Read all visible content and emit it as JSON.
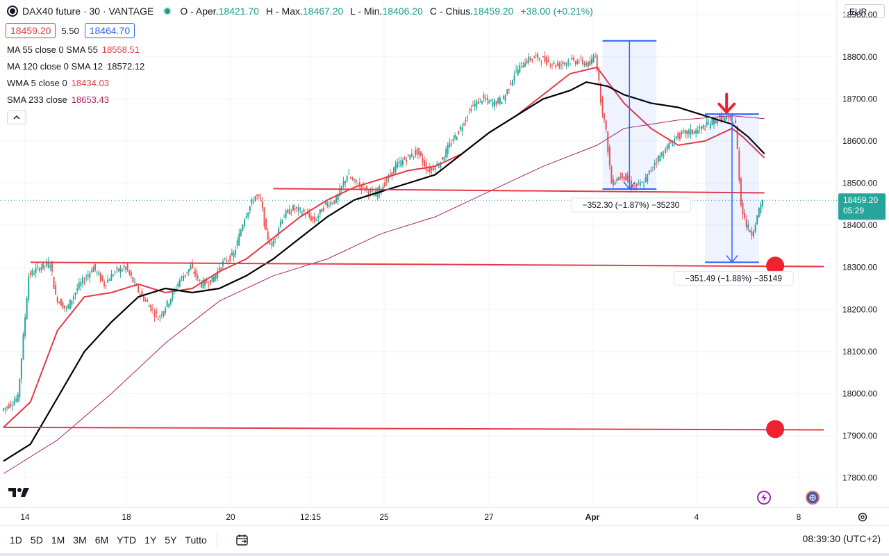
{
  "header": {
    "symbol": "DAX40 future · 30 · VANTAGE",
    "open_label": "O - Aper.",
    "open": "18421.70",
    "high_label": "H - Max.",
    "high": "18467.20",
    "low_label": "L - Min.",
    "low": "18406.20",
    "close_label": "C - Chius.",
    "close": "18459.20",
    "change": "+38.00 (+0.21%)"
  },
  "quote": {
    "bid": "18459.20",
    "spread": "5.50",
    "ask": "18464.70"
  },
  "indicators": [
    {
      "name": "MA 55 close 0 SMA 55",
      "value": "18558.51",
      "color": "#e53945"
    },
    {
      "name": "MA 120 close 0 SMA 12",
      "value": "18572.12",
      "color": "#131722"
    },
    {
      "name": "WMA 5 close 0",
      "value": "18434.03",
      "color": "#e53945"
    },
    {
      "name": "SMA 233 close",
      "value": "18653.43",
      "color": "#b0225e"
    }
  ],
  "currency": "EUR",
  "price_tag": {
    "price": "18459.20",
    "countdown": "05:29"
  },
  "measure_1": "−352.30 (−1.87%) −35230",
  "measure_2": "−351.49 (−1.88%) −35149",
  "bottom": {
    "ranges": [
      "1D",
      "5D",
      "1M",
      "3M",
      "6M",
      "YTD",
      "1Y",
      "5Y",
      "Tutto"
    ],
    "clock": "08:39:30 (UTC+2)"
  },
  "colors": {
    "up": "#26a69a",
    "down": "#ef5350",
    "ma55": "#e53945",
    "ma120": "#000000",
    "sma233": "#b0225e",
    "line": "#e53945",
    "measure": "#2962ff"
  },
  "chart_data": {
    "type": "candlestick",
    "instrument": "DAX40 future",
    "timeframe": "30",
    "x_tick_labels": [
      "14",
      "18",
      "20",
      "12:15",
      "25",
      "27",
      "Apr",
      "4",
      "8"
    ],
    "y_ticks": [
      "18900.00",
      "18800.00",
      "18700.00",
      "18600.00",
      "18500.00",
      "18400.00",
      "18300.00",
      "18200.00",
      "18100.00",
      "18000.00",
      "17900.00",
      "17800.00"
    ],
    "ylim": [
      17730,
      18935
    ],
    "grid": true,
    "last_price": 18459.2,
    "price_path": [
      [
        0,
        17960
      ],
      [
        3,
        17990
      ],
      [
        5,
        18280
      ],
      [
        7,
        18300
      ],
      [
        9,
        18310
      ],
      [
        10,
        18230
      ],
      [
        12,
        18200
      ],
      [
        14,
        18250
      ],
      [
        17,
        18300
      ],
      [
        19,
        18260
      ],
      [
        21,
        18290
      ],
      [
        23,
        18300
      ],
      [
        25,
        18250
      ],
      [
        27,
        18215
      ],
      [
        29,
        18180
      ],
      [
        31,
        18220
      ],
      [
        33,
        18270
      ],
      [
        35,
        18300
      ],
      [
        37,
        18260
      ],
      [
        39,
        18270
      ],
      [
        41,
        18310
      ],
      [
        43,
        18330
      ],
      [
        45,
        18420
      ],
      [
        47,
        18470
      ],
      [
        48,
        18460
      ],
      [
        49,
        18380
      ],
      [
        50,
        18350
      ],
      [
        52,
        18420
      ],
      [
        54,
        18440
      ],
      [
        56,
        18430
      ],
      [
        58,
        18410
      ],
      [
        60,
        18450
      ],
      [
        62,
        18460
      ],
      [
        64,
        18520
      ],
      [
        65,
        18505
      ],
      [
        67,
        18490
      ],
      [
        69,
        18470
      ],
      [
        71,
        18500
      ],
      [
        73,
        18540
      ],
      [
        75,
        18560
      ],
      [
        77,
        18575
      ],
      [
        79,
        18530
      ],
      [
        81,
        18545
      ],
      [
        83,
        18590
      ],
      [
        85,
        18630
      ],
      [
        87,
        18680
      ],
      [
        89,
        18700
      ],
      [
        91,
        18690
      ],
      [
        93,
        18700
      ],
      [
        95,
        18760
      ],
      [
        97,
        18790
      ],
      [
        99,
        18800
      ],
      [
        101,
        18790
      ],
      [
        103,
        18780
      ],
      [
        105,
        18790
      ],
      [
        107,
        18790
      ],
      [
        109,
        18780
      ],
      [
        110,
        18810
      ],
      [
        111,
        18700
      ],
      [
        112,
        18620
      ],
      [
        113,
        18500
      ],
      [
        115,
        18520
      ],
      [
        117,
        18490
      ],
      [
        119,
        18500
      ],
      [
        121,
        18550
      ],
      [
        123,
        18580
      ],
      [
        125,
        18610
      ],
      [
        127,
        18620
      ],
      [
        129,
        18625
      ],
      [
        131,
        18640
      ],
      [
        133,
        18655
      ],
      [
        135,
        18650
      ],
      [
        136,
        18640
      ],
      [
        137,
        18450
      ],
      [
        138,
        18400
      ],
      [
        139,
        18380
      ],
      [
        140,
        18420
      ],
      [
        141,
        18459
      ]
    ],
    "series": [
      {
        "name": "MA 55 close 0 SMA 55",
        "color": "#e53945",
        "values": [
          [
            0,
            17920
          ],
          [
            5,
            17980
          ],
          [
            10,
            18150
          ],
          [
            15,
            18230
          ],
          [
            20,
            18240
          ],
          [
            25,
            18260
          ],
          [
            30,
            18240
          ],
          [
            35,
            18250
          ],
          [
            40,
            18290
          ],
          [
            45,
            18320
          ],
          [
            50,
            18370
          ],
          [
            55,
            18420
          ],
          [
            60,
            18460
          ],
          [
            65,
            18490
          ],
          [
            70,
            18510
          ],
          [
            75,
            18530
          ],
          [
            80,
            18540
          ],
          [
            85,
            18570
          ],
          [
            90,
            18620
          ],
          [
            95,
            18660
          ],
          [
            100,
            18710
          ],
          [
            105,
            18760
          ],
          [
            110,
            18775
          ],
          [
            112,
            18740
          ],
          [
            115,
            18690
          ],
          [
            120,
            18630
          ],
          [
            125,
            18590
          ],
          [
            130,
            18600
          ],
          [
            135,
            18630
          ],
          [
            137,
            18610
          ],
          [
            141,
            18560
          ]
        ]
      },
      {
        "name": "MA 120 close 0 SMA 12",
        "color": "#000000",
        "values": [
          [
            0,
            17840
          ],
          [
            5,
            17880
          ],
          [
            10,
            17990
          ],
          [
            15,
            18100
          ],
          [
            20,
            18170
          ],
          [
            25,
            18230
          ],
          [
            30,
            18250
          ],
          [
            35,
            18240
          ],
          [
            40,
            18250
          ],
          [
            45,
            18280
          ],
          [
            50,
            18320
          ],
          [
            55,
            18370
          ],
          [
            60,
            18420
          ],
          [
            65,
            18460
          ],
          [
            70,
            18480
          ],
          [
            75,
            18500
          ],
          [
            80,
            18520
          ],
          [
            85,
            18570
          ],
          [
            90,
            18620
          ],
          [
            95,
            18660
          ],
          [
            100,
            18700
          ],
          [
            105,
            18720
          ],
          [
            108,
            18740
          ],
          [
            112,
            18730
          ],
          [
            115,
            18710
          ],
          [
            120,
            18690
          ],
          [
            125,
            18680
          ],
          [
            130,
            18660
          ],
          [
            135,
            18640
          ],
          [
            138,
            18610
          ],
          [
            141,
            18570
          ]
        ]
      },
      {
        "name": "SMA 233 close",
        "color": "#b0225e",
        "values": [
          [
            0,
            17810
          ],
          [
            10,
            17890
          ],
          [
            20,
            18000
          ],
          [
            30,
            18120
          ],
          [
            40,
            18220
          ],
          [
            50,
            18280
          ],
          [
            60,
            18320
          ],
          [
            70,
            18380
          ],
          [
            80,
            18420
          ],
          [
            90,
            18480
          ],
          [
            100,
            18540
          ],
          [
            110,
            18590
          ],
          [
            115,
            18630
          ],
          [
            120,
            18640
          ],
          [
            125,
            18650
          ],
          [
            130,
            18655
          ],
          [
            135,
            18660
          ],
          [
            141,
            18653
          ]
        ]
      }
    ],
    "horizontal_lines": [
      {
        "from_x": 50,
        "to_x": 141,
        "y1": 18487,
        "y2": 18477
      },
      {
        "from_x": 5,
        "to_x": 152,
        "y1": 18312,
        "y2": 18302
      },
      {
        "from_x": 0,
        "to_x": 152,
        "y1": 17920,
        "y2": 17914
      }
    ],
    "targets": [
      {
        "x": 143,
        "y": 18304
      },
      {
        "x": 143,
        "y": 17916
      }
    ],
    "measures": [
      {
        "x1": 111,
        "x2": 121,
        "y_top": 18838,
        "y_bottom": 18486,
        "label": "−352.30 (−1.87%) −35230"
      },
      {
        "x1": 130,
        "x2": 140,
        "y_top": 18664,
        "y_bottom": 18312,
        "label": "−351.49 (−1.88%) −35149"
      }
    ],
    "sell_arrow": {
      "x": 134,
      "y": 18665
    }
  }
}
